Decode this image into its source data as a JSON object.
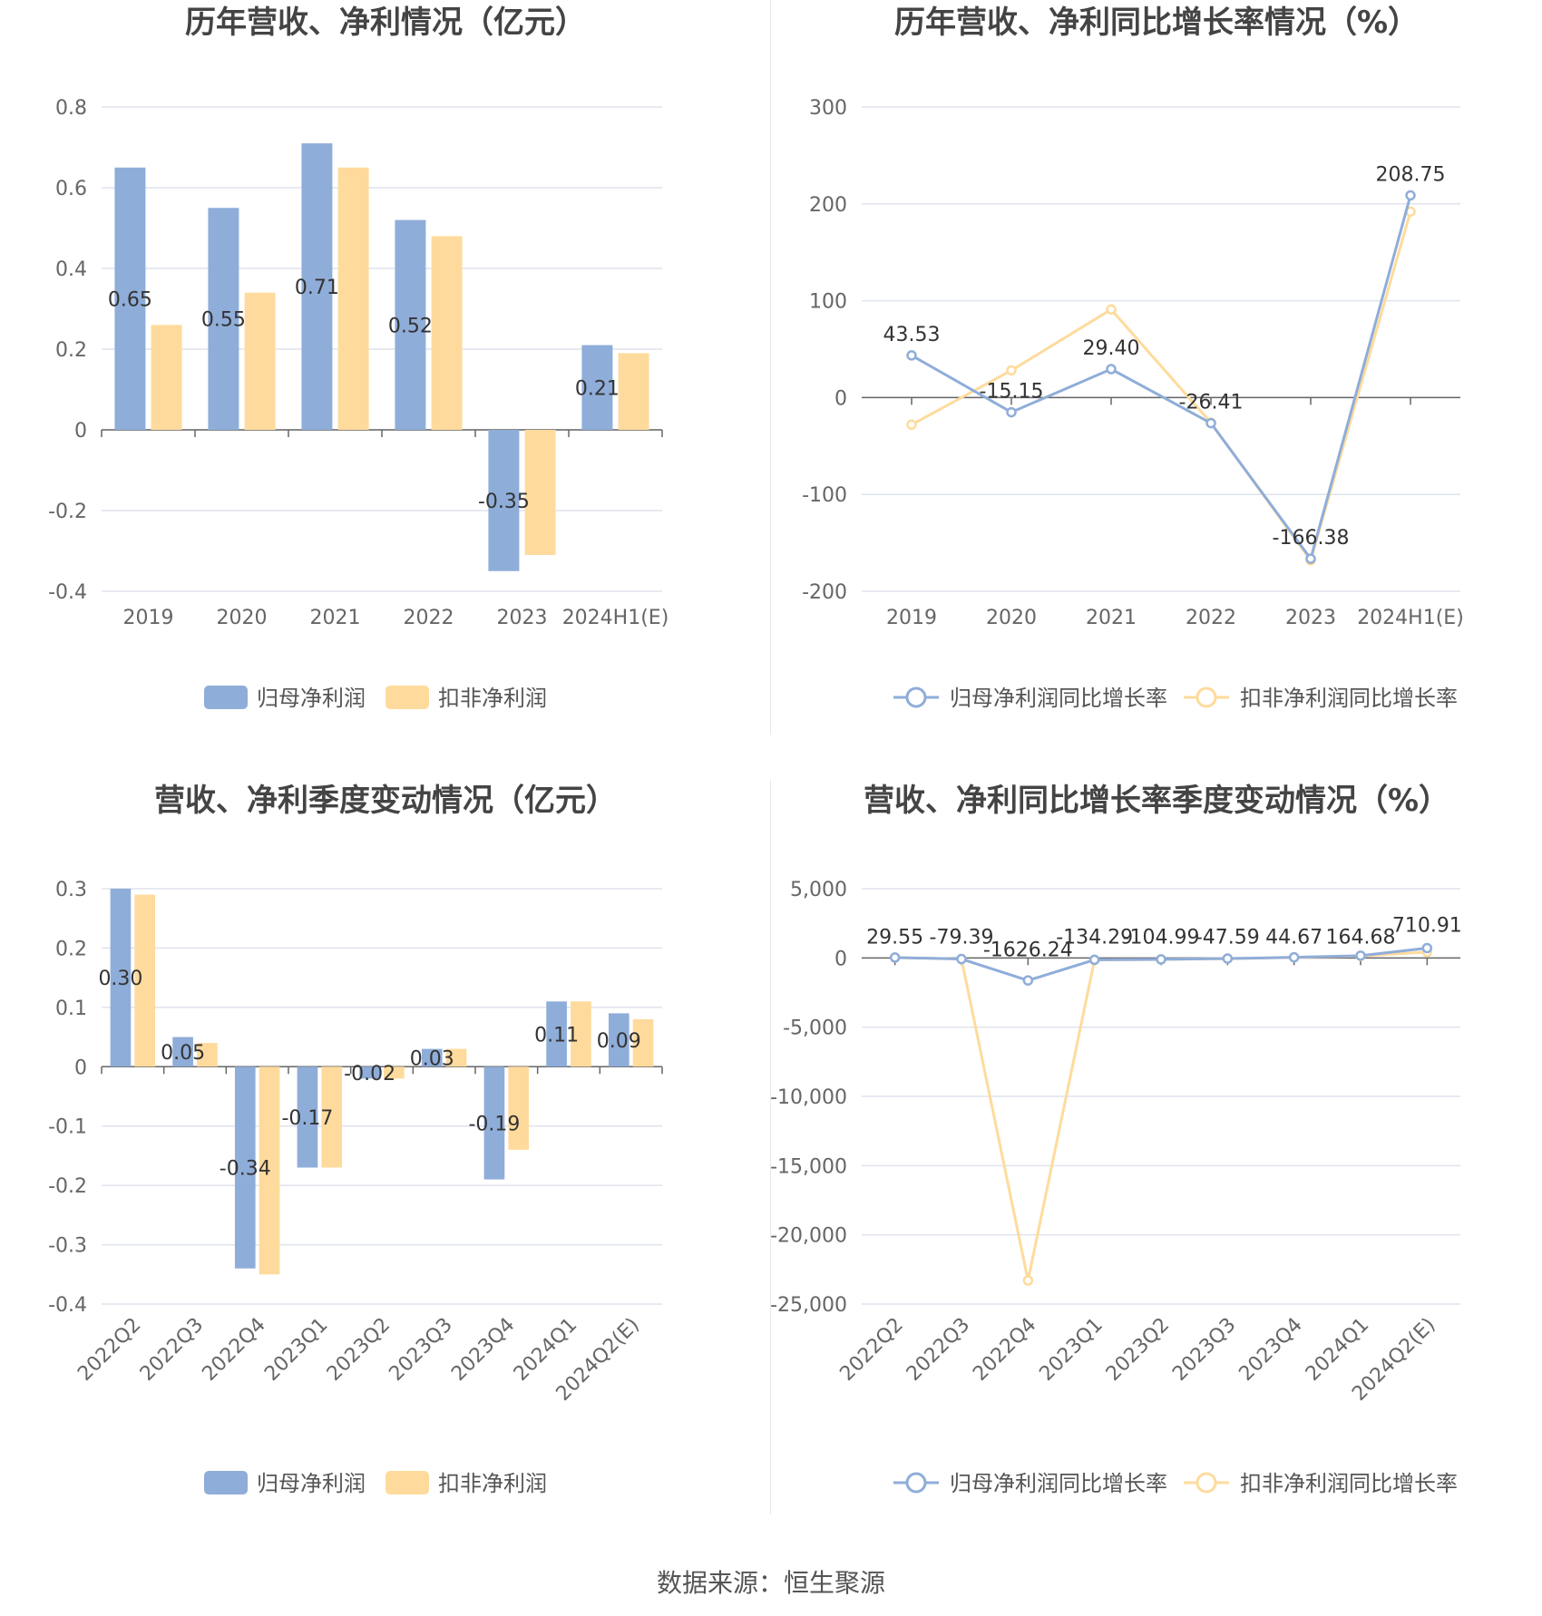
{
  "source": "数据来源：恒生聚源",
  "colors": {
    "blue": "#8fadd9",
    "yellow": "#fedb9c",
    "grid": "#dfe3ee",
    "axis": "#666666"
  },
  "chart_data": [
    {
      "type": "bar",
      "title": "历年营收、净利情况（亿元）",
      "categories": [
        "2019",
        "2020",
        "2021",
        "2022",
        "2023",
        "2024H1(E)"
      ],
      "yticks": [
        "0.8",
        "0.6",
        "0.4",
        "0.2",
        "0",
        "-0.2",
        "-0.4"
      ],
      "ylim": [
        -0.4,
        0.8
      ],
      "series": [
        {
          "name": "归母净利润",
          "values": [
            0.65,
            0.55,
            0.71,
            0.52,
            -0.35,
            0.21
          ],
          "labels": [
            "0.65",
            "0.55",
            "0.71",
            "0.52",
            "-0.35",
            "0.21"
          ]
        },
        {
          "name": "扣非净利润",
          "values": [
            0.26,
            0.34,
            0.65,
            0.48,
            -0.31,
            0.19
          ]
        }
      ],
      "legend": "bottom"
    },
    {
      "type": "line",
      "title": "历年营收、净利同比增长率情况（%）",
      "categories": [
        "2019",
        "2020",
        "2021",
        "2022",
        "2023",
        "2024H1(E)"
      ],
      "yticks": [
        "300",
        "200",
        "100",
        "0",
        "-100",
        "-200"
      ],
      "ylim": [
        -200,
        300
      ],
      "series": [
        {
          "name": "归母净利润同比增长率",
          "values": [
            43.53,
            -15.15,
            29.4,
            -26.41,
            -166.38,
            208.75
          ],
          "labels": [
            "43.53",
            "-15.15",
            "29.40",
            "-26.41",
            "-166.38",
            "208.75"
          ]
        },
        {
          "name": "扣非净利润同比增长率",
          "values": [
            -28,
            28,
            91,
            -26,
            -168,
            192
          ]
        }
      ],
      "legend": "bottom"
    },
    {
      "type": "bar",
      "title": "营收、净利季度变动情况（亿元）",
      "categories": [
        "2022Q2",
        "2022Q3",
        "2022Q4",
        "2023Q1",
        "2023Q2",
        "2023Q3",
        "2023Q4",
        "2024Q1",
        "2024Q2(E)"
      ],
      "yticks": [
        "0.3",
        "0.2",
        "0.1",
        "0",
        "-0.1",
        "-0.2",
        "-0.3",
        "-0.4"
      ],
      "ylim": [
        -0.4,
        0.3
      ],
      "series": [
        {
          "name": "归母净利润",
          "values": [
            0.3,
            0.05,
            -0.34,
            -0.17,
            -0.02,
            0.03,
            -0.19,
            0.11,
            0.09
          ],
          "labels": [
            "0.30",
            "0.05",
            "-0.34",
            "-0.17",
            "-0.02",
            "0.03",
            "-0.19",
            "0.11",
            "0.09"
          ]
        },
        {
          "name": "扣非净利润",
          "values": [
            0.29,
            0.04,
            -0.35,
            -0.17,
            -0.02,
            0.03,
            -0.14,
            0.11,
            0.08
          ]
        }
      ],
      "legend": "bottom"
    },
    {
      "type": "line",
      "title": "营收、净利同比增长率季度变动情况（%）",
      "categories": [
        "2022Q2",
        "2022Q3",
        "2022Q4",
        "2023Q1",
        "2023Q2",
        "2023Q3",
        "2023Q4",
        "2024Q1",
        "2024Q2(E)"
      ],
      "yticks": [
        "5,000",
        "0",
        "-5,000",
        "-10,000",
        "-15,000",
        "-20,000",
        "-25,000"
      ],
      "ylim": [
        -25000,
        5000
      ],
      "series": [
        {
          "name": "归母净利润同比增长率",
          "values": [
            29.55,
            -79.39,
            -1626.24,
            -134.29,
            -104.99,
            -47.59,
            44.67,
            164.68,
            710.91
          ],
          "labels": [
            "29.55",
            "-79.39",
            "-1626.24",
            "-134.29",
            "-104.99",
            "-47.59",
            "44.67",
            "164.68",
            "710.91"
          ]
        },
        {
          "name": "扣非净利润同比增长率",
          "values": [
            30,
            -80,
            -23300,
            -140,
            -110,
            -50,
            40,
            140,
            420
          ]
        }
      ],
      "legend": "bottom"
    }
  ]
}
